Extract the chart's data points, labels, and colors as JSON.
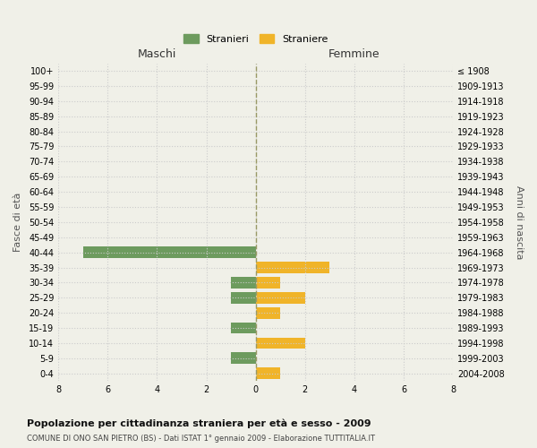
{
  "age_groups": [
    "0-4",
    "5-9",
    "10-14",
    "15-19",
    "20-24",
    "25-29",
    "30-34",
    "35-39",
    "40-44",
    "45-49",
    "50-54",
    "55-59",
    "60-64",
    "65-69",
    "70-74",
    "75-79",
    "80-84",
    "85-89",
    "90-94",
    "95-99",
    "100+"
  ],
  "birth_years": [
    "2004-2008",
    "1999-2003",
    "1994-1998",
    "1989-1993",
    "1984-1988",
    "1979-1983",
    "1974-1978",
    "1969-1973",
    "1964-1968",
    "1959-1963",
    "1954-1958",
    "1949-1953",
    "1944-1948",
    "1939-1943",
    "1934-1938",
    "1929-1933",
    "1924-1928",
    "1919-1923",
    "1914-1918",
    "1909-1913",
    "≤ 1908"
  ],
  "maschi": [
    0,
    1,
    0,
    1,
    0,
    1,
    1,
    0,
    7,
    0,
    0,
    0,
    0,
    0,
    0,
    0,
    0,
    0,
    0,
    0,
    0
  ],
  "femmine": [
    1,
    0,
    2,
    0,
    1,
    2,
    1,
    3,
    0,
    0,
    0,
    0,
    0,
    0,
    0,
    0,
    0,
    0,
    0,
    0,
    0
  ],
  "color_maschi": "#6d9b5e",
  "color_femmine": "#f0b429",
  "title": "Popolazione per cittadinanza straniera per età e sesso - 2009",
  "subtitle": "COMUNE DI ONO SAN PIETRO (BS) - Dati ISTAT 1° gennaio 2009 - Elaborazione TUTTITALIA.IT",
  "xlabel_left": "Maschi",
  "xlabel_right": "Femmine",
  "ylabel_left": "Fasce di età",
  "ylabel_right": "Anni di nascita",
  "legend_maschi": "Stranieri",
  "legend_femmine": "Straniere",
  "xlim": 8,
  "background_color": "#f0f0e8",
  "grid_color": "#cccccc"
}
